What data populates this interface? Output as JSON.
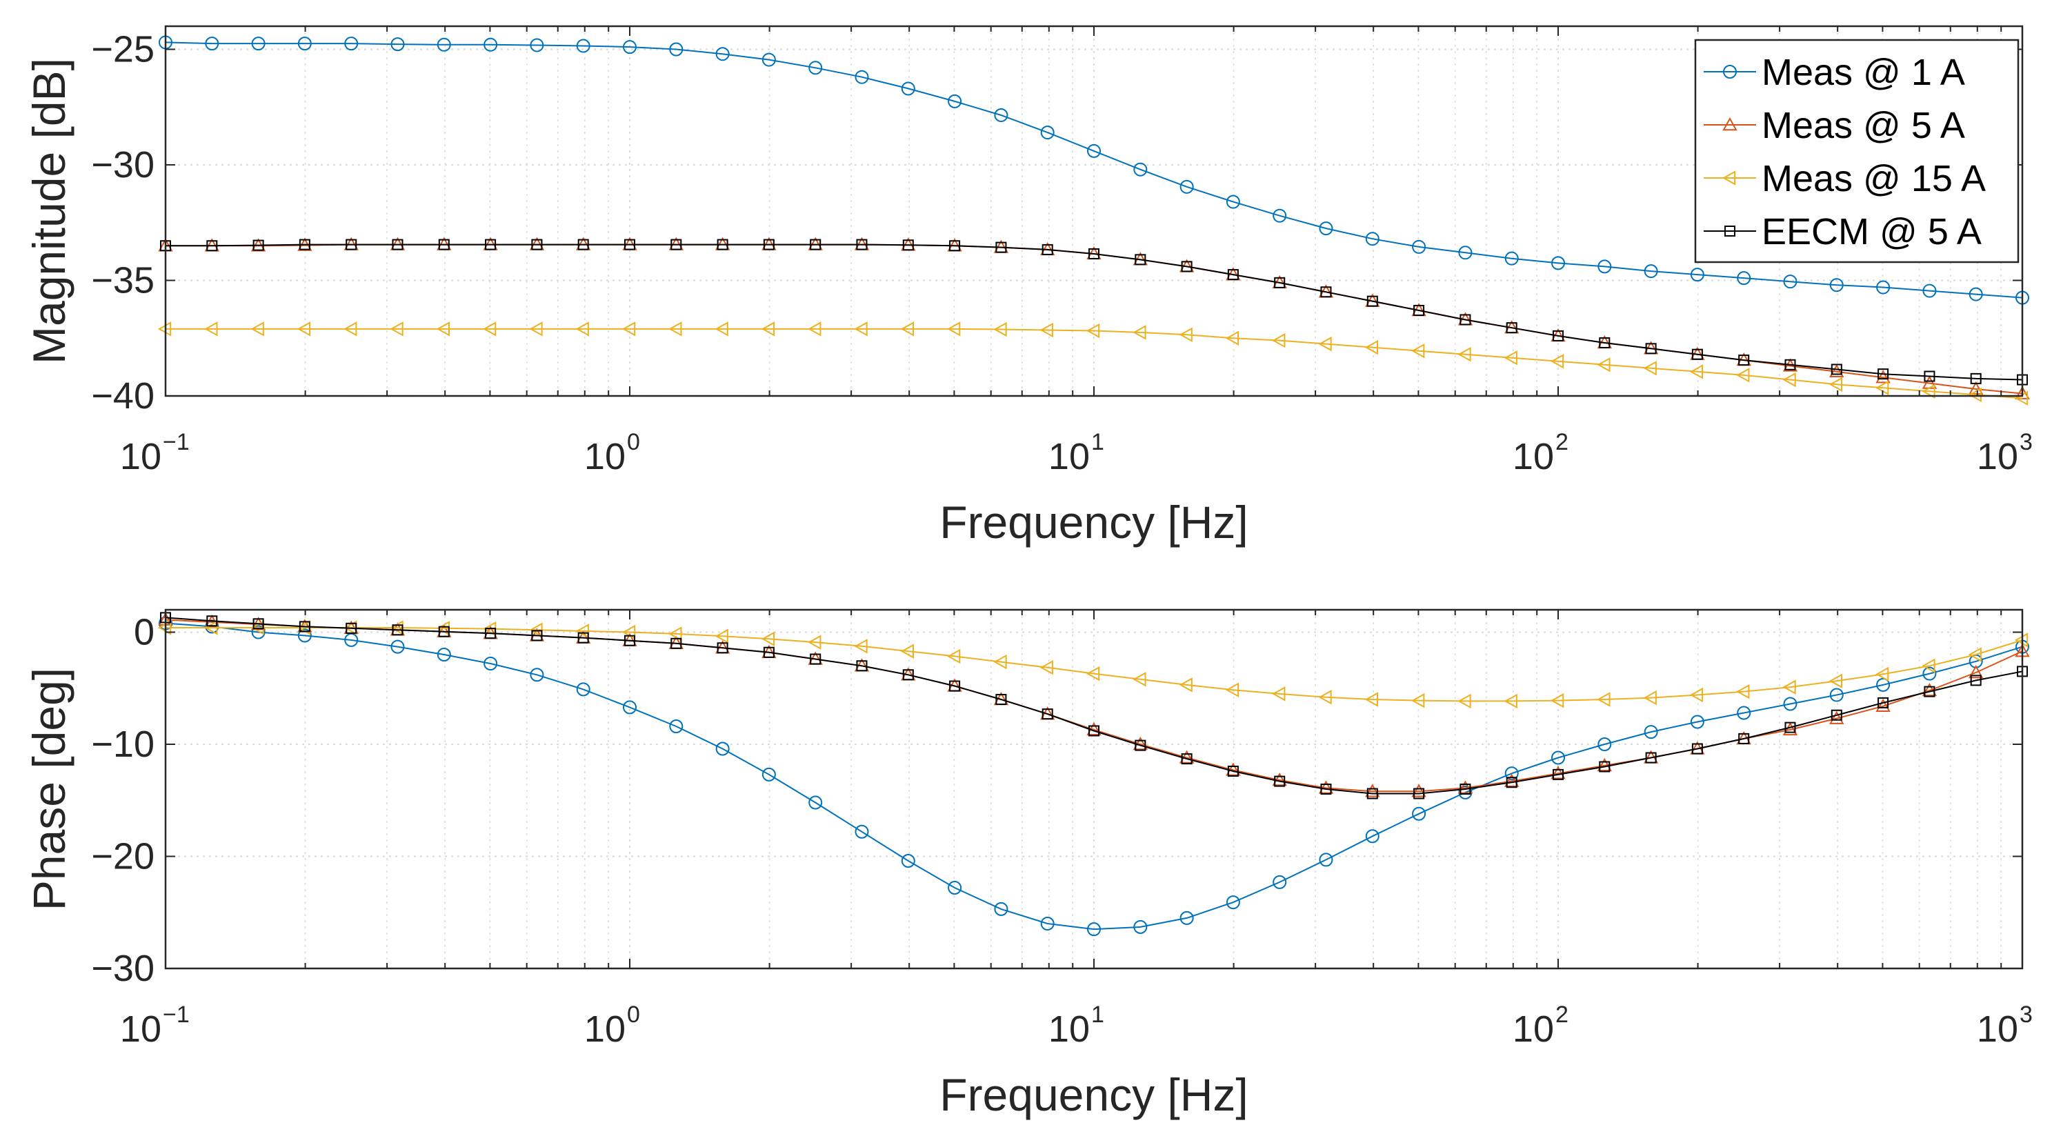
{
  "colors": {
    "meas_1a": "#0072BD",
    "meas_5a": "#D95319",
    "meas_15a": "#EDB120",
    "eecm_5a": "#000000",
    "grid": "#dcdcdc",
    "axis": "#262626"
  },
  "chart_data": [
    {
      "type": "line",
      "name": "magnitude",
      "xscale": "log",
      "xlim": [
        0.1,
        1000
      ],
      "ylim": [
        -40,
        -24
      ],
      "xlabel": "Frequency [Hz]",
      "ylabel": "Magnitude [dB]",
      "xticks": [
        {
          "base": "10",
          "exp": "−1"
        },
        {
          "base": "10",
          "exp": "0"
        },
        {
          "base": "10",
          "exp": "1"
        },
        {
          "base": "10",
          "exp": "2"
        },
        {
          "base": "10",
          "exp": "3"
        }
      ],
      "yticks": [
        {
          "value": -25,
          "label": "−25"
        },
        {
          "value": -30,
          "label": "−30"
        },
        {
          "value": -35,
          "label": "−35"
        },
        {
          "value": -40,
          "label": "−40"
        }
      ],
      "grid": true,
      "legend": "top-right",
      "x": [
        0.1,
        0.1259,
        0.1585,
        0.1995,
        0.2512,
        0.3162,
        0.3981,
        0.5012,
        0.631,
        0.7943,
        1,
        1.259,
        1.585,
        1.995,
        2.512,
        3.162,
        3.981,
        5.012,
        6.31,
        7.943,
        10,
        12.59,
        15.85,
        19.95,
        25.12,
        31.62,
        39.81,
        50.12,
        63.1,
        79.43,
        100,
        125.9,
        158.5,
        199.5,
        251.2,
        316.2,
        398.1,
        501.2,
        631,
        794.3,
        1000
      ],
      "series": [
        {
          "name": "Meas @ 1 A",
          "marker": "circle",
          "color_key": "meas_1a",
          "values": [
            -24.7,
            -24.75,
            -24.75,
            -24.75,
            -24.75,
            -24.78,
            -24.8,
            -24.8,
            -24.82,
            -24.85,
            -24.9,
            -25.0,
            -25.2,
            -25.45,
            -25.8,
            -26.2,
            -26.7,
            -27.25,
            -27.85,
            -28.6,
            -29.4,
            -30.2,
            -30.95,
            -31.6,
            -32.2,
            -32.75,
            -33.2,
            -33.55,
            -33.8,
            -34.05,
            -34.25,
            -34.4,
            -34.6,
            -34.75,
            -34.9,
            -35.05,
            -35.2,
            -35.3,
            -35.45,
            -35.6,
            -35.75
          ]
        },
        {
          "name": "Meas @ 5 A",
          "marker": "triangle-up",
          "color_key": "meas_5a",
          "values": [
            -33.5,
            -33.5,
            -33.5,
            -33.48,
            -33.45,
            -33.45,
            -33.45,
            -33.45,
            -33.45,
            -33.45,
            -33.45,
            -33.45,
            -33.45,
            -33.45,
            -33.45,
            -33.45,
            -33.47,
            -33.5,
            -33.57,
            -33.67,
            -33.85,
            -34.1,
            -34.4,
            -34.75,
            -35.1,
            -35.5,
            -35.9,
            -36.3,
            -36.7,
            -37.05,
            -37.4,
            -37.7,
            -37.95,
            -38.2,
            -38.45,
            -38.7,
            -38.95,
            -39.2,
            -39.45,
            -39.7,
            -39.9
          ]
        },
        {
          "name": "Meas @ 15 A",
          "marker": "triangle-left",
          "color_key": "meas_15a",
          "values": [
            -37.1,
            -37.1,
            -37.1,
            -37.1,
            -37.1,
            -37.1,
            -37.1,
            -37.1,
            -37.1,
            -37.1,
            -37.1,
            -37.1,
            -37.1,
            -37.1,
            -37.1,
            -37.1,
            -37.1,
            -37.1,
            -37.12,
            -37.15,
            -37.18,
            -37.25,
            -37.35,
            -37.5,
            -37.6,
            -37.75,
            -37.9,
            -38.05,
            -38.2,
            -38.35,
            -38.5,
            -38.65,
            -38.8,
            -38.95,
            -39.1,
            -39.3,
            -39.5,
            -39.65,
            -39.8,
            -39.95,
            -40.1
          ]
        },
        {
          "name": "EECM @ 5 A",
          "marker": "square",
          "color_key": "eecm_5a",
          "values": [
            -33.5,
            -33.5,
            -33.48,
            -33.45,
            -33.45,
            -33.45,
            -33.45,
            -33.45,
            -33.45,
            -33.45,
            -33.45,
            -33.45,
            -33.45,
            -33.45,
            -33.45,
            -33.45,
            -33.47,
            -33.5,
            -33.57,
            -33.67,
            -33.85,
            -34.1,
            -34.4,
            -34.75,
            -35.1,
            -35.5,
            -35.9,
            -36.3,
            -36.7,
            -37.05,
            -37.4,
            -37.7,
            -37.95,
            -38.2,
            -38.45,
            -38.65,
            -38.85,
            -39.05,
            -39.15,
            -39.25,
            -39.3
          ]
        }
      ]
    },
    {
      "type": "line",
      "name": "phase",
      "xscale": "log",
      "xlim": [
        0.1,
        1000
      ],
      "ylim": [
        -30,
        2
      ],
      "xlabel": "Frequency [Hz]",
      "ylabel": "Phase [deg]",
      "xticks": [
        {
          "base": "10",
          "exp": "−1"
        },
        {
          "base": "10",
          "exp": "0"
        },
        {
          "base": "10",
          "exp": "1"
        },
        {
          "base": "10",
          "exp": "2"
        },
        {
          "base": "10",
          "exp": "3"
        }
      ],
      "yticks": [
        {
          "value": 0,
          "label": "0"
        },
        {
          "value": -10,
          "label": "−10"
        },
        {
          "value": -20,
          "label": "−20"
        },
        {
          "value": -30,
          "label": "−30"
        }
      ],
      "grid": true,
      "x": [
        0.1,
        0.1259,
        0.1585,
        0.1995,
        0.2512,
        0.3162,
        0.3981,
        0.5012,
        0.631,
        0.7943,
        1,
        1.259,
        1.585,
        1.995,
        2.512,
        3.162,
        3.981,
        5.012,
        6.31,
        7.943,
        10,
        12.59,
        15.85,
        19.95,
        25.12,
        31.62,
        39.81,
        50.12,
        63.1,
        79.43,
        100,
        125.9,
        158.5,
        199.5,
        251.2,
        316.2,
        398.1,
        501.2,
        631,
        794.3,
        1000
      ],
      "series": [
        {
          "name": "Meas @ 1 A",
          "marker": "circle",
          "color_key": "meas_1a",
          "values": [
            0.8,
            0.5,
            0.0,
            -0.3,
            -0.7,
            -1.3,
            -2.0,
            -2.8,
            -3.8,
            -5.1,
            -6.7,
            -8.4,
            -10.4,
            -12.7,
            -15.2,
            -17.8,
            -20.4,
            -22.8,
            -24.7,
            -26.0,
            -26.5,
            -26.3,
            -25.5,
            -24.1,
            -22.3,
            -20.3,
            -18.2,
            -16.2,
            -14.3,
            -12.6,
            -11.2,
            -10.0,
            -8.9,
            -8.0,
            -7.2,
            -6.4,
            -5.6,
            -4.7,
            -3.7,
            -2.6,
            -1.3
          ]
        },
        {
          "name": "Meas @ 5 A",
          "marker": "triangle-up",
          "color_key": "meas_5a",
          "values": [
            1.1,
            0.9,
            0.7,
            0.5,
            0.35,
            0.2,
            0.05,
            -0.1,
            -0.3,
            -0.5,
            -0.75,
            -1.0,
            -1.4,
            -1.8,
            -2.4,
            -3.0,
            -3.8,
            -4.8,
            -6.0,
            -7.3,
            -8.7,
            -10.0,
            -11.2,
            -12.3,
            -13.2,
            -13.9,
            -14.2,
            -14.2,
            -13.9,
            -13.3,
            -12.6,
            -11.9,
            -11.2,
            -10.4,
            -9.5,
            -8.7,
            -7.7,
            -6.6,
            -5.2,
            -3.6,
            -1.7
          ]
        },
        {
          "name": "Meas @ 15 A",
          "marker": "triangle-left",
          "color_key": "meas_15a",
          "values": [
            0.4,
            0.4,
            0.4,
            0.4,
            0.4,
            0.4,
            0.35,
            0.3,
            0.2,
            0.1,
            0.0,
            -0.15,
            -0.35,
            -0.6,
            -0.9,
            -1.25,
            -1.7,
            -2.15,
            -2.65,
            -3.15,
            -3.7,
            -4.2,
            -4.7,
            -5.15,
            -5.5,
            -5.8,
            -6.0,
            -6.1,
            -6.15,
            -6.15,
            -6.1,
            -6.0,
            -5.85,
            -5.6,
            -5.3,
            -4.9,
            -4.35,
            -3.75,
            -3.0,
            -2.0,
            -0.7
          ]
        },
        {
          "name": "EECM @ 5 A",
          "marker": "square",
          "color_key": "eecm_5a",
          "values": [
            1.3,
            1.0,
            0.75,
            0.5,
            0.35,
            0.2,
            0.05,
            -0.1,
            -0.3,
            -0.5,
            -0.75,
            -1.0,
            -1.4,
            -1.8,
            -2.4,
            -3.0,
            -3.8,
            -4.8,
            -6.0,
            -7.3,
            -8.8,
            -10.1,
            -11.3,
            -12.4,
            -13.3,
            -14.0,
            -14.4,
            -14.4,
            -14.0,
            -13.4,
            -12.7,
            -12.0,
            -11.2,
            -10.4,
            -9.5,
            -8.5,
            -7.4,
            -6.3,
            -5.3,
            -4.3,
            -3.5
          ]
        }
      ]
    }
  ]
}
